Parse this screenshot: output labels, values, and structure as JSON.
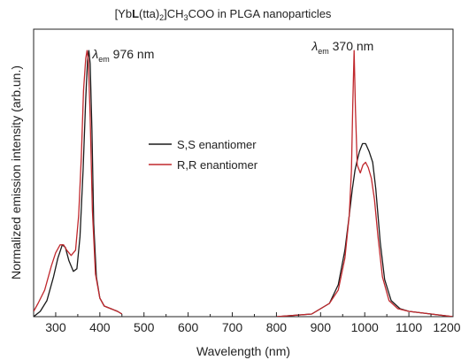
{
  "chart_data": {
    "type": "line",
    "title": {
      "prefix": "[Yb",
      "bold": "L",
      "mid": "(tta)",
      "sub1": "2",
      "mid2": "]CH",
      "sub2": "3",
      "suffix": "COO in PLGA nanoparticles"
    },
    "xlabel": "Wavelength (nm)",
    "ylabel": "Normalized emission intensity (arb.un.)",
    "xlim": [
      250,
      1200
    ],
    "ylim": [
      0,
      1.08
    ],
    "x_ticks": [
      300,
      400,
      500,
      600,
      700,
      800,
      900,
      1000,
      1100,
      1200
    ],
    "grid": false,
    "legend_position": "center",
    "annotations": [
      {
        "symbol": "λ",
        "sub": "em",
        "value": " 976 nm",
        "x": 383,
        "y": 0.97
      },
      {
        "symbol": "λ",
        "sub": "em",
        "value": " 370 nm",
        "x": 880,
        "y": 1.0
      }
    ],
    "series": [
      {
        "name": "S,S enantiomer",
        "color": "#1a1a1a",
        "segments": [
          {
            "x": [
              250,
              265,
              280,
              295,
              305,
              315,
              322,
              330,
              340,
              348,
              355,
              362,
              368,
              372,
              375,
              378,
              382,
              386,
              392,
              400,
              410,
              425,
              440,
              450
            ],
            "y": [
              0.0,
              0.02,
              0.06,
              0.15,
              0.22,
              0.27,
              0.26,
              0.21,
              0.17,
              0.18,
              0.3,
              0.55,
              0.82,
              0.96,
              1.0,
              0.95,
              0.7,
              0.35,
              0.15,
              0.07,
              0.04,
              0.03,
              0.02,
              0.01
            ]
          },
          {
            "x": [
              800,
              880,
              920,
              940,
              955,
              965,
              972,
              978,
              982,
              988,
              995,
              1002,
              1010,
              1018,
              1025,
              1035,
              1045,
              1060,
              1080,
              1100,
              1150,
              1200
            ],
            "y": [
              0.0,
              0.01,
              0.05,
              0.12,
              0.25,
              0.38,
              0.48,
              0.55,
              0.58,
              0.62,
              0.65,
              0.65,
              0.62,
              0.58,
              0.48,
              0.28,
              0.14,
              0.06,
              0.03,
              0.02,
              0.01,
              0.0
            ]
          }
        ]
      },
      {
        "name": "R,R enantiomer",
        "color": "#c0282d",
        "segments": [
          {
            "x": [
              250,
              260,
              275,
              290,
              300,
              310,
              318,
              325,
              335,
              345,
              352,
              358,
              363,
              368,
              371,
              374,
              378,
              383,
              390,
              400,
              410,
              425,
              440,
              450
            ],
            "y": [
              0.02,
              0.05,
              0.1,
              0.19,
              0.24,
              0.27,
              0.27,
              0.25,
              0.23,
              0.25,
              0.38,
              0.6,
              0.85,
              0.97,
              1.0,
              0.96,
              0.75,
              0.4,
              0.16,
              0.07,
              0.04,
              0.03,
              0.02,
              0.01
            ]
          },
          {
            "x": [
              800,
              880,
              920,
              940,
              955,
              965,
              970,
              973,
              976,
              979,
              983,
              990,
              996,
              1002,
              1008,
              1015,
              1022,
              1030,
              1040,
              1055,
              1075,
              1100,
              1150,
              1200
            ],
            "y": [
              0.0,
              0.01,
              0.05,
              0.1,
              0.22,
              0.38,
              0.55,
              0.8,
              1.0,
              0.78,
              0.57,
              0.54,
              0.57,
              0.58,
              0.56,
              0.52,
              0.44,
              0.3,
              0.15,
              0.06,
              0.03,
              0.02,
              0.01,
              0.0
            ]
          }
        ]
      }
    ]
  }
}
